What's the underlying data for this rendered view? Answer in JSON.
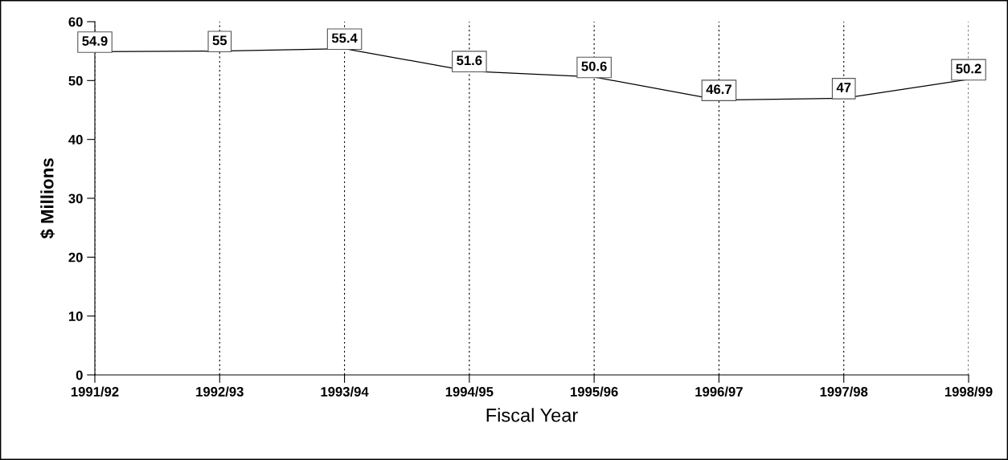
{
  "chart_data": {
    "type": "line",
    "xlabel": "Fiscal Year",
    "ylabel": "$ Millions",
    "categories": [
      "1991/92",
      "1992/93",
      "1993/94",
      "1994/95",
      "1995/96",
      "1996/97",
      "1997/98",
      "1998/99"
    ],
    "values": [
      54.9,
      55,
      55.4,
      51.6,
      50.6,
      46.7,
      47,
      50.2
    ],
    "color": "#000000",
    "ylim": [
      0,
      60
    ],
    "yticks": [
      0,
      10,
      20,
      30,
      40,
      50,
      60
    ],
    "grid": "x",
    "data_labels": true,
    "marker": "none",
    "line_style": "solid"
  }
}
